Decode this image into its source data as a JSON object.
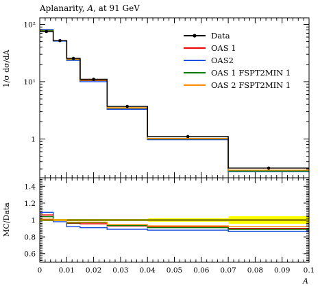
{
  "chart_data": {
    "type": "line",
    "title": "Aplanarity, A, at 91 GeV",
    "title_parts": {
      "before": "Aplanarity, ",
      "symbol": "A",
      "after": ", at 91 GeV"
    },
    "xlabel": "A",
    "ylabel_main": "1/σ dσ/dA",
    "ylabel_ratio": "MC/Data",
    "xlim": [
      0,
      0.1
    ],
    "ylim_main": [
      0.21,
      130
    ],
    "yscale_main": "log",
    "ylim_ratio": [
      0.5,
      1.5
    ],
    "grid": false,
    "legend_position": "top-right",
    "x_ticks": [
      "0",
      "0.01",
      "0.02",
      "0.03",
      "0.04",
      "0.05",
      "0.06",
      "0.07",
      "0.08",
      "0.09",
      "0.1"
    ],
    "y_ticks_main": [
      "10²",
      "10¹",
      "1"
    ],
    "y_ticks_ratio": [
      "0.6",
      "0.8",
      "1",
      "1.2",
      "1.4"
    ],
    "bin_edges": [
      0,
      0.005,
      0.01,
      0.015,
      0.025,
      0.04,
      0.07,
      0.1
    ],
    "data": {
      "name": "Data",
      "color": "#000000",
      "x": [
        0.0025,
        0.0075,
        0.0125,
        0.02,
        0.0325,
        0.055,
        0.085
      ],
      "y": [
        75,
        52,
        25.5,
        11,
        3.7,
        1.1,
        0.31
      ]
    },
    "data_band": {
      "color": "#ffff00",
      "half_width": [
        0.012,
        0.012,
        0.012,
        0.012,
        0.012,
        0.02,
        0.045
      ]
    },
    "series": [
      {
        "name": "OAS 1",
        "color": "#ee0000",
        "values": [
          79,
          52,
          24.5,
          10.5,
          3.45,
          1.01,
          0.28
        ]
      },
      {
        "name": "OAS2",
        "color": "#1f4fe0",
        "values": [
          81,
          51,
          23.5,
          10.0,
          3.3,
          0.97,
          0.27
        ]
      },
      {
        "name": "OAS 1 FSPT2MIN 1",
        "color": "#007a00",
        "values": [
          78,
          52,
          24.5,
          10.6,
          3.45,
          1.0,
          0.276
        ]
      },
      {
        "name": "OAS 2 FSPT2MIN 1",
        "color": "#ff8c00",
        "values": [
          76,
          52,
          24.8,
          10.7,
          3.5,
          1.02,
          0.285
        ]
      }
    ],
    "ratio": {
      "series": [
        {
          "name": "OAS 1",
          "values": [
            1.06,
            1.0,
            0.96,
            0.955,
            0.93,
            0.918,
            0.9
          ]
        },
        {
          "name": "OAS2",
          "values": [
            1.09,
            0.98,
            0.92,
            0.91,
            0.89,
            0.88,
            0.865
          ]
        },
        {
          "name": "OAS 1 FSPT2MIN 1",
          "values": [
            1.04,
            1.0,
            0.965,
            0.97,
            0.935,
            0.91,
            0.89
          ]
        },
        {
          "name": "OAS 2 FSPT2MIN 1",
          "values": [
            1.01,
            1.0,
            0.975,
            0.975,
            0.945,
            0.93,
            0.92
          ]
        }
      ]
    }
  }
}
